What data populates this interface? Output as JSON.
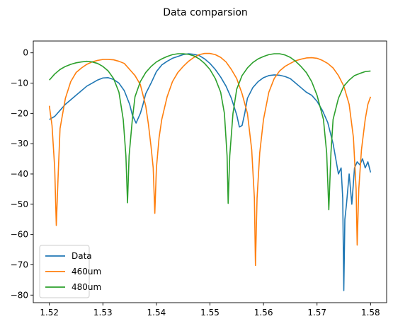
{
  "chart_data": {
    "type": "line",
    "title": "Data comparsion",
    "xlabel": "",
    "ylabel": "",
    "xlim": [
      1.517,
      1.583
    ],
    "ylim": [
      -82.5,
      3.9
    ],
    "x_ticks": [
      1.52,
      1.53,
      1.54,
      1.55,
      1.56,
      1.57,
      1.58
    ],
    "x_tick_labels": [
      "1.52",
      "1.53",
      "1.54",
      "1.55",
      "1.56",
      "1.57",
      "1.58"
    ],
    "y_ticks": [
      0,
      -10,
      -20,
      -30,
      -40,
      -50,
      -60,
      -70,
      -80
    ],
    "y_tick_labels": [
      "0",
      "−10",
      "−20",
      "−30",
      "−40",
      "−50",
      "−60",
      "−70",
      "−80"
    ],
    "grid": false,
    "legend_position": "lower-left",
    "series": [
      {
        "name": "Data",
        "color": "#1f77b4",
        "points": [
          [
            1.52,
            -22
          ],
          [
            1.521,
            -21
          ],
          [
            1.522,
            -19
          ],
          [
            1.523,
            -17
          ],
          [
            1.524,
            -15.5
          ],
          [
            1.525,
            -14
          ],
          [
            1.526,
            -12.5
          ],
          [
            1.527,
            -11
          ],
          [
            1.528,
            -10
          ],
          [
            1.529,
            -9
          ],
          [
            1.53,
            -8.3
          ],
          [
            1.531,
            -8.2
          ],
          [
            1.532,
            -8.8
          ],
          [
            1.533,
            -10
          ],
          [
            1.534,
            -12.5
          ],
          [
            1.535,
            -17
          ],
          [
            1.5355,
            -20.5
          ],
          [
            1.5362,
            -23.2
          ],
          [
            1.537,
            -20
          ],
          [
            1.5375,
            -17
          ],
          [
            1.538,
            -13.5
          ],
          [
            1.539,
            -10
          ],
          [
            1.54,
            -6.2
          ],
          [
            1.541,
            -4
          ],
          [
            1.542,
            -2.8
          ],
          [
            1.543,
            -1.8
          ],
          [
            1.544,
            -1.2
          ],
          [
            1.545,
            -0.6
          ],
          [
            1.546,
            -0.3
          ],
          [
            1.547,
            -0.5
          ],
          [
            1.548,
            -0.9
          ],
          [
            1.549,
            -2
          ],
          [
            1.55,
            -3.5
          ],
          [
            1.551,
            -5.5
          ],
          [
            1.552,
            -8
          ],
          [
            1.553,
            -11
          ],
          [
            1.554,
            -15
          ],
          [
            1.555,
            -20.5
          ],
          [
            1.5555,
            -24.5
          ],
          [
            1.556,
            -24
          ],
          [
            1.5565,
            -20
          ],
          [
            1.557,
            -15
          ],
          [
            1.558,
            -11.5
          ],
          [
            1.559,
            -9.5
          ],
          [
            1.56,
            -8.2
          ],
          [
            1.561,
            -7.5
          ],
          [
            1.562,
            -7.3
          ],
          [
            1.563,
            -7.4
          ],
          [
            1.564,
            -7.8
          ],
          [
            1.565,
            -8.5
          ],
          [
            1.566,
            -10
          ],
          [
            1.567,
            -11.5
          ],
          [
            1.568,
            -13
          ],
          [
            1.569,
            -14
          ],
          [
            1.57,
            -16
          ],
          [
            1.571,
            -19
          ],
          [
            1.572,
            -23
          ],
          [
            1.573,
            -30
          ],
          [
            1.574,
            -40
          ],
          [
            1.5745,
            -38
          ],
          [
            1.5748,
            -48
          ],
          [
            1.575,
            -78.5
          ],
          [
            1.5752,
            -55
          ],
          [
            1.5755,
            -50
          ],
          [
            1.576,
            -40
          ],
          [
            1.5765,
            -50
          ],
          [
            1.577,
            -38
          ],
          [
            1.5775,
            -36
          ],
          [
            1.578,
            -37
          ],
          [
            1.5785,
            -35
          ],
          [
            1.579,
            -38
          ],
          [
            1.5795,
            -36
          ],
          [
            1.58,
            -39.5
          ]
        ]
      },
      {
        "name": "460um",
        "color": "#ff7f0e",
        "points": [
          [
            1.52,
            -17.5
          ],
          [
            1.5205,
            -24
          ],
          [
            1.521,
            -38
          ],
          [
            1.5213,
            -57
          ],
          [
            1.5217,
            -38
          ],
          [
            1.522,
            -25
          ],
          [
            1.523,
            -15
          ],
          [
            1.524,
            -9.5
          ],
          [
            1.525,
            -6.5
          ],
          [
            1.526,
            -5
          ],
          [
            1.527,
            -3.8
          ],
          [
            1.528,
            -3
          ],
          [
            1.529,
            -2.5
          ],
          [
            1.53,
            -2.2
          ],
          [
            1.531,
            -2.2
          ],
          [
            1.532,
            -2.3
          ],
          [
            1.533,
            -2.8
          ],
          [
            1.534,
            -3.5
          ],
          [
            1.535,
            -5.5
          ],
          [
            1.536,
            -7.5
          ],
          [
            1.537,
            -10.5
          ],
          [
            1.538,
            -17.5
          ],
          [
            1.5385,
            -23.5
          ],
          [
            1.539,
            -31
          ],
          [
            1.5394,
            -38
          ],
          [
            1.5397,
            -53
          ],
          [
            1.54,
            -38
          ],
          [
            1.5405,
            -28
          ],
          [
            1.541,
            -22
          ],
          [
            1.542,
            -14.5
          ],
          [
            1.543,
            -9.5
          ],
          [
            1.544,
            -6.5
          ],
          [
            1.545,
            -4.5
          ],
          [
            1.546,
            -2.8
          ],
          [
            1.547,
            -1.5
          ],
          [
            1.548,
            -0.6
          ],
          [
            1.549,
            -0.2
          ],
          [
            1.55,
            -0.2
          ],
          [
            1.551,
            -0.6
          ],
          [
            1.552,
            -1.5
          ],
          [
            1.553,
            -3
          ],
          [
            1.554,
            -5.5
          ],
          [
            1.555,
            -8.5
          ],
          [
            1.556,
            -13.5
          ],
          [
            1.557,
            -20
          ],
          [
            1.5578,
            -32
          ],
          [
            1.5583,
            -48
          ],
          [
            1.5585,
            -70.2
          ],
          [
            1.5588,
            -48
          ],
          [
            1.5593,
            -33
          ],
          [
            1.56,
            -22
          ],
          [
            1.561,
            -13
          ],
          [
            1.562,
            -8.5
          ],
          [
            1.563,
            -6
          ],
          [
            1.564,
            -4.5
          ],
          [
            1.565,
            -3.5
          ],
          [
            1.566,
            -2.6
          ],
          [
            1.567,
            -2.1
          ],
          [
            1.568,
            -1.7
          ],
          [
            1.569,
            -1.6
          ],
          [
            1.57,
            -1.8
          ],
          [
            1.571,
            -2.5
          ],
          [
            1.572,
            -3.5
          ],
          [
            1.573,
            -5
          ],
          [
            1.574,
            -7.5
          ],
          [
            1.575,
            -11
          ],
          [
            1.576,
            -17
          ],
          [
            1.5768,
            -28
          ],
          [
            1.5773,
            -45
          ],
          [
            1.5775,
            -63.5
          ],
          [
            1.5778,
            -45
          ],
          [
            1.5783,
            -32
          ],
          [
            1.579,
            -22
          ],
          [
            1.5795,
            -17
          ],
          [
            1.58,
            -14.5
          ]
        ]
      },
      {
        "name": "480um",
        "color": "#2ca02c",
        "points": [
          [
            1.52,
            -9
          ],
          [
            1.521,
            -7
          ],
          [
            1.522,
            -5.5
          ],
          [
            1.523,
            -4.5
          ],
          [
            1.524,
            -3.8
          ],
          [
            1.525,
            -3.3
          ],
          [
            1.526,
            -3
          ],
          [
            1.527,
            -2.8
          ],
          [
            1.528,
            -3
          ],
          [
            1.529,
            -3.5
          ],
          [
            1.53,
            -4.5
          ],
          [
            1.531,
            -6
          ],
          [
            1.532,
            -8.5
          ],
          [
            1.533,
            -13
          ],
          [
            1.5338,
            -22
          ],
          [
            1.5343,
            -34
          ],
          [
            1.5346,
            -49.5
          ],
          [
            1.5349,
            -34
          ],
          [
            1.5355,
            -22
          ],
          [
            1.536,
            -14.5
          ],
          [
            1.537,
            -9.5
          ],
          [
            1.538,
            -6.5
          ],
          [
            1.539,
            -4.5
          ],
          [
            1.54,
            -3
          ],
          [
            1.541,
            -2
          ],
          [
            1.542,
            -1.2
          ],
          [
            1.543,
            -0.6
          ],
          [
            1.544,
            -0.3
          ],
          [
            1.545,
            -0.3
          ],
          [
            1.546,
            -0.5
          ],
          [
            1.547,
            -1
          ],
          [
            1.548,
            -2
          ],
          [
            1.549,
            -3.5
          ],
          [
            1.55,
            -5.5
          ],
          [
            1.551,
            -8.5
          ],
          [
            1.552,
            -13
          ],
          [
            1.5527,
            -20
          ],
          [
            1.5532,
            -34
          ],
          [
            1.5534,
            -49.7
          ],
          [
            1.5537,
            -34
          ],
          [
            1.5543,
            -20
          ],
          [
            1.555,
            -12
          ],
          [
            1.556,
            -7.5
          ],
          [
            1.557,
            -5
          ],
          [
            1.558,
            -3.2
          ],
          [
            1.559,
            -2
          ],
          [
            1.56,
            -1.2
          ],
          [
            1.561,
            -0.6
          ],
          [
            1.562,
            -0.3
          ],
          [
            1.563,
            -0.3
          ],
          [
            1.564,
            -0.7
          ],
          [
            1.565,
            -1.5
          ],
          [
            1.566,
            -2.8
          ],
          [
            1.567,
            -4.5
          ],
          [
            1.568,
            -6.5
          ],
          [
            1.569,
            -9.5
          ],
          [
            1.57,
            -14
          ],
          [
            1.5712,
            -22
          ],
          [
            1.5718,
            -33
          ],
          [
            1.5722,
            -51.8
          ],
          [
            1.5726,
            -33
          ],
          [
            1.573,
            -22
          ],
          [
            1.574,
            -15
          ],
          [
            1.575,
            -11
          ],
          [
            1.576,
            -9
          ],
          [
            1.577,
            -7.5
          ],
          [
            1.578,
            -6.8
          ],
          [
            1.579,
            -6.2
          ],
          [
            1.58,
            -6
          ]
        ]
      }
    ]
  }
}
